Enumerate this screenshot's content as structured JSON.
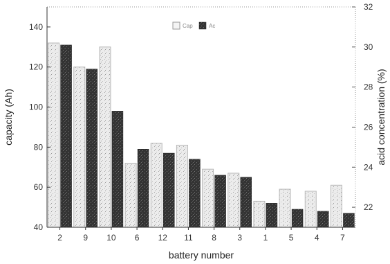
{
  "chart_data": {
    "type": "bar",
    "xlabel": "battery number",
    "ylabel": "capacity (Ah)",
    "y2label": "acid concentration (%)",
    "categories": [
      "2",
      "9",
      "10",
      "6",
      "12",
      "11",
      "8",
      "3",
      "1",
      "5",
      "4",
      "7"
    ],
    "series": [
      {
        "name": "Cap",
        "axis": "left",
        "color": "#e4e4e4",
        "values": [
          132,
          120,
          130,
          72,
          82,
          81,
          69,
          67,
          53,
          59,
          58,
          61
        ]
      },
      {
        "name": "Ac",
        "axis": "right",
        "color": "#3a3a3a",
        "values": [
          30.1,
          28.9,
          26.8,
          24.9,
          24.7,
          24.4,
          23.6,
          23.5,
          22.2,
          21.9,
          21.8,
          21.7
        ]
      }
    ],
    "ylim": [
      40,
      150
    ],
    "y2lim": [
      21,
      32
    ],
    "yticks": [
      40,
      60,
      80,
      100,
      120,
      140
    ],
    "y2ticks": [
      22,
      24,
      26,
      28,
      30,
      32
    ],
    "legend_position": "top-center",
    "grid": false
  }
}
